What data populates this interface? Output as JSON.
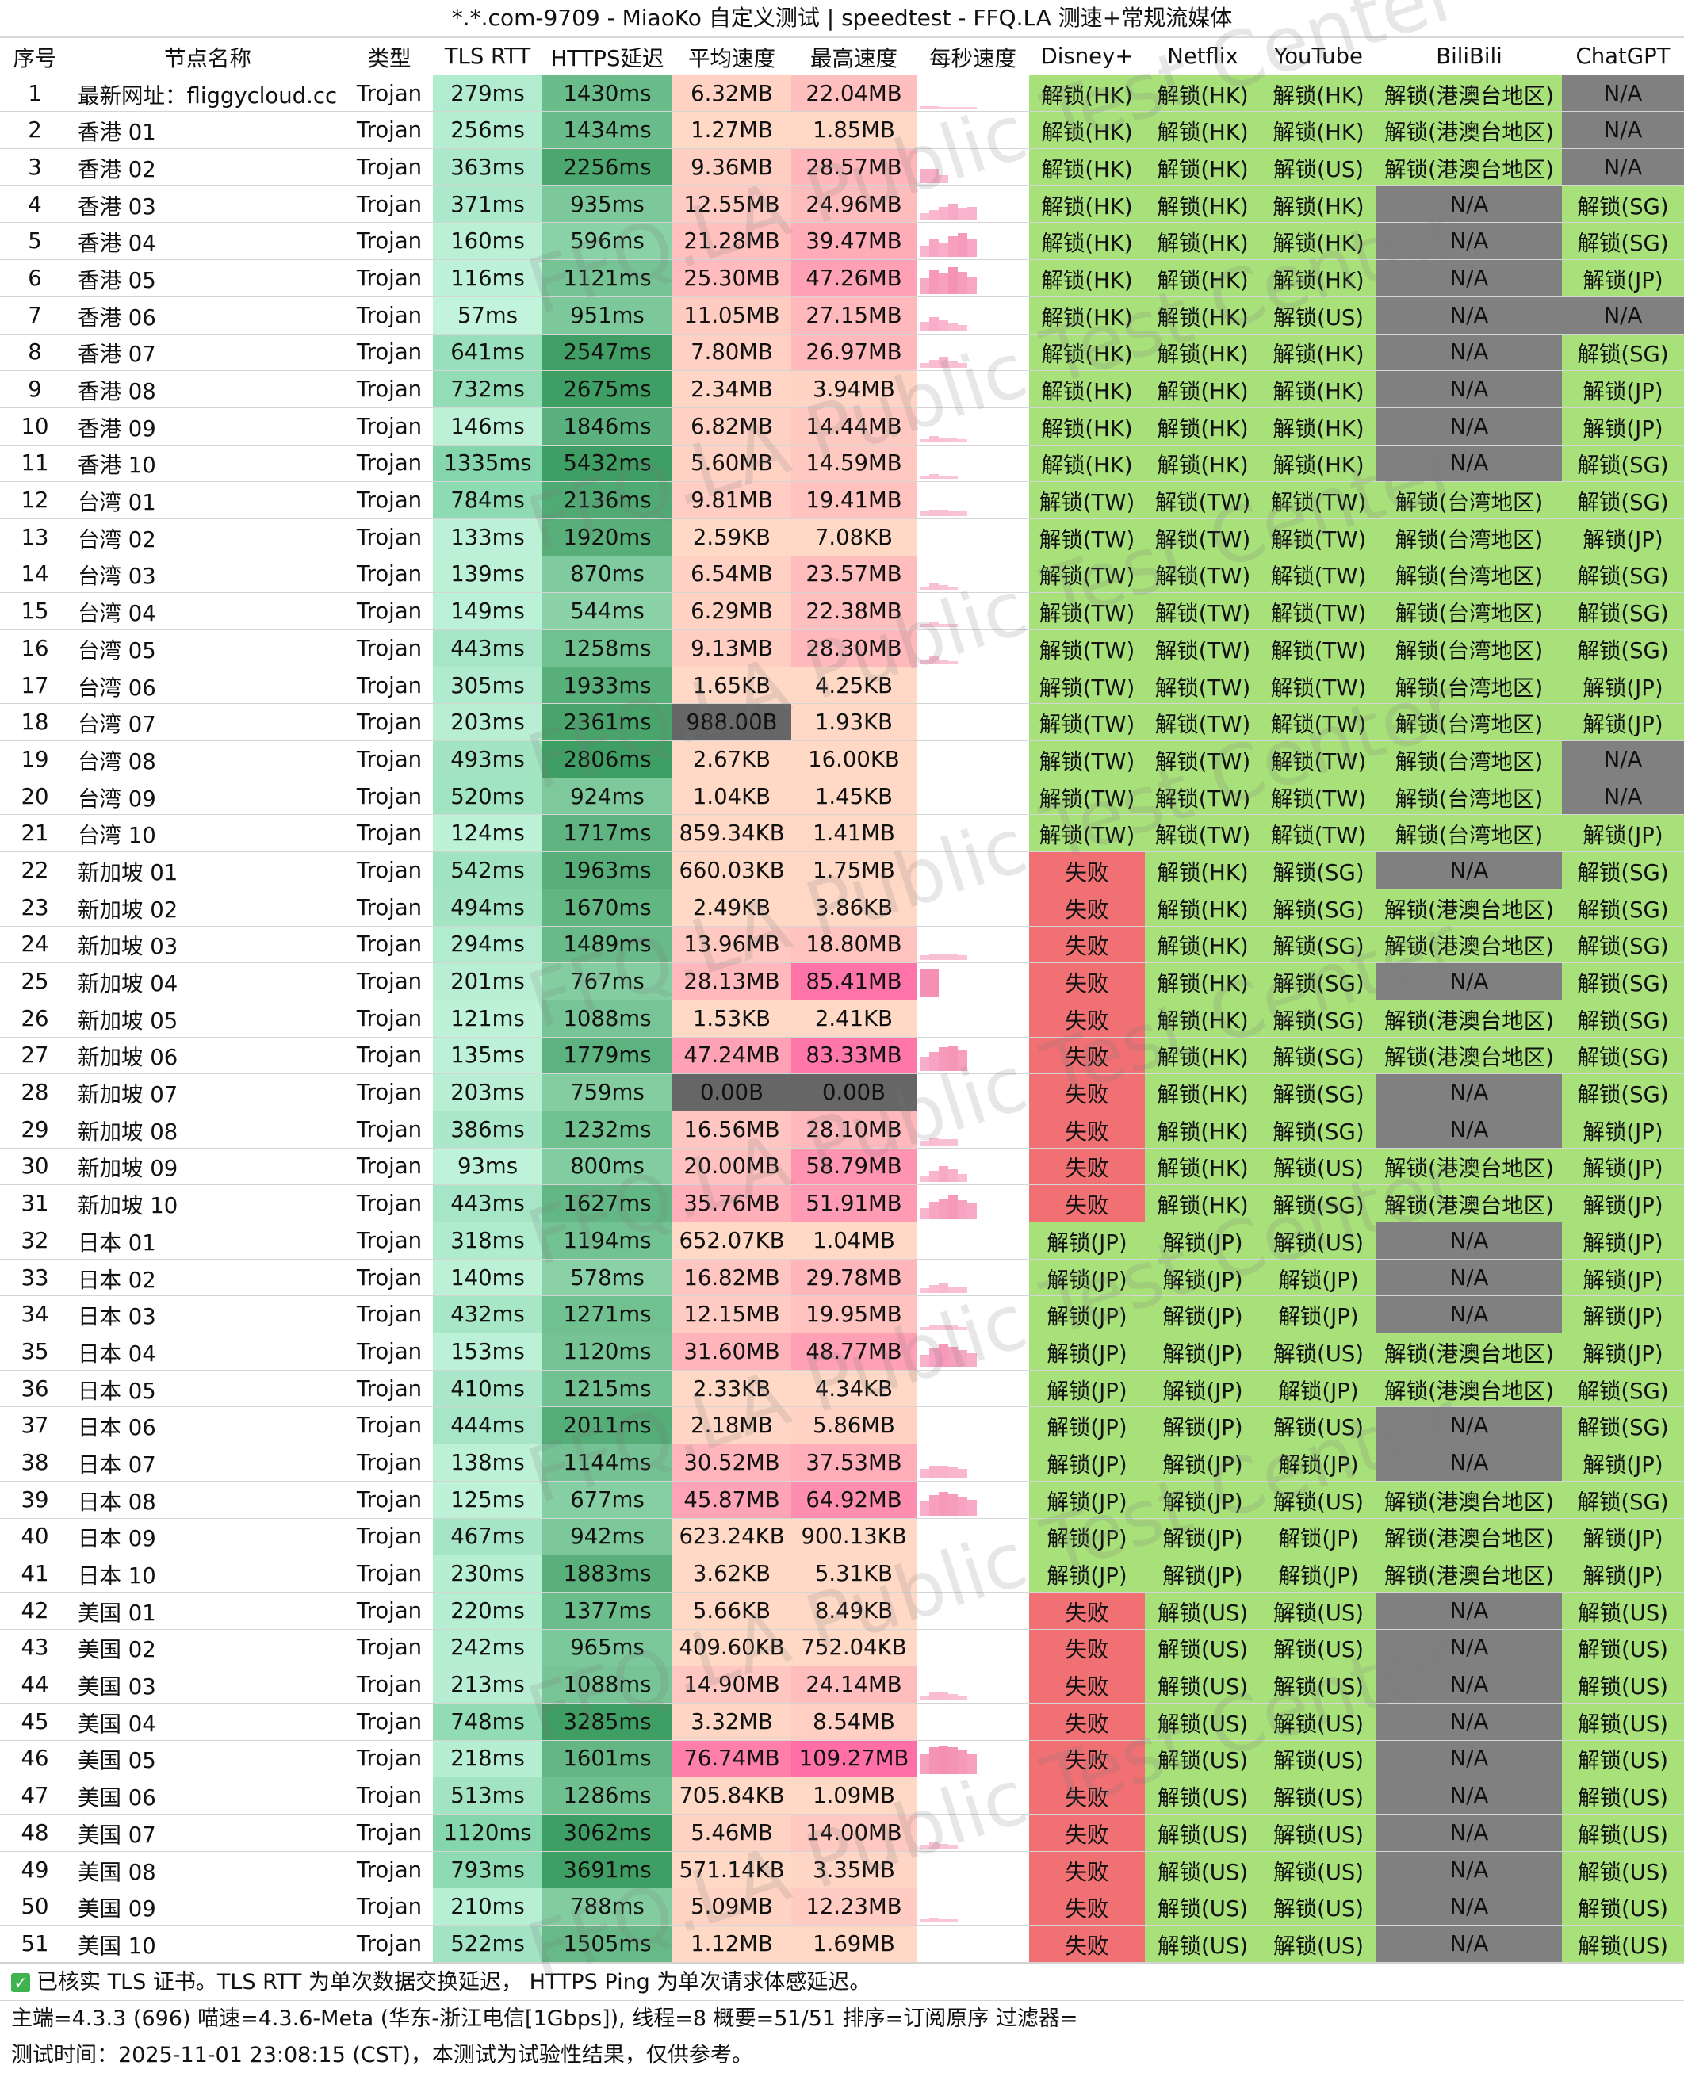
{
  "title": "*.*.com-9709 - MiaoKo 自定义测试 | speedtest - FFQ.LA 测速+常规流媒体",
  "watermark": "FFQ.LA Public Test Center",
  "headers": [
    "序号",
    "节点名称",
    "类型",
    "TLS RTT",
    "HTTPS延迟",
    "平均速度",
    "最高速度",
    "每秒速度",
    "Disney+",
    "Netflix",
    "YouTube",
    "BiliBili",
    "ChatGPT"
  ],
  "colors": {
    "tls_light": "#c6f6de",
    "tls_dark": "#86d6ad",
    "https_light": "#9fe0bb",
    "https_dark": "#3f9e63",
    "speed_light": "#ffd9c6",
    "speed_dark": "#ff6fa6",
    "zero_speed": "#666666",
    "unlock": "#a8e07a",
    "fail": "#f07074",
    "na": "#808080"
  },
  "rows": [
    {
      "id": "1",
      "name": "最新网址：fliggycloud.cc",
      "type": "Trojan",
      "tls": "279ms",
      "https": "1430ms",
      "avg": "6.32MB",
      "max": "22.04MB",
      "spark": [
        3,
        3,
        2,
        2,
        2,
        2
      ],
      "disney": "解锁(HK)",
      "netflix": "解锁(HK)",
      "youtube": "解锁(HK)",
      "bili": "解锁(港澳台地区)",
      "gpt": "N/A"
    },
    {
      "id": "2",
      "name": "香港 01",
      "type": "Trojan",
      "tls": "256ms",
      "https": "1434ms",
      "avg": "1.27MB",
      "max": "1.85MB",
      "spark": [],
      "disney": "解锁(HK)",
      "netflix": "解锁(HK)",
      "youtube": "解锁(HK)",
      "bili": "解锁(港澳台地区)",
      "gpt": "N/A"
    },
    {
      "id": "3",
      "name": "香港 02",
      "type": "Trojan",
      "tls": "363ms",
      "https": "2256ms",
      "avg": "9.36MB",
      "max": "28.57MB",
      "spark": [
        18,
        18,
        10
      ],
      "disney": "解锁(HK)",
      "netflix": "解锁(HK)",
      "youtube": "解锁(US)",
      "bili": "解锁(港澳台地区)",
      "gpt": "N/A"
    },
    {
      "id": "4",
      "name": "香港 03",
      "type": "Trojan",
      "tls": "371ms",
      "https": "935ms",
      "avg": "12.55MB",
      "max": "24.96MB",
      "spark": [
        8,
        12,
        16,
        20,
        14,
        16
      ],
      "disney": "解锁(HK)",
      "netflix": "解锁(HK)",
      "youtube": "解锁(HK)",
      "bili": "N/A",
      "gpt": "解锁(SG)"
    },
    {
      "id": "5",
      "name": "香港 04",
      "type": "Trojan",
      "tls": "160ms",
      "https": "596ms",
      "avg": "21.28MB",
      "max": "39.47MB",
      "spark": [
        14,
        22,
        18,
        26,
        30,
        22
      ],
      "disney": "解锁(HK)",
      "netflix": "解锁(HK)",
      "youtube": "解锁(HK)",
      "bili": "N/A",
      "gpt": "解锁(SG)"
    },
    {
      "id": "6",
      "name": "香港 05",
      "type": "Trojan",
      "tls": "116ms",
      "https": "1121ms",
      "avg": "25.30MB",
      "max": "47.26MB",
      "spark": [
        20,
        30,
        26,
        34,
        28,
        22
      ],
      "disney": "解锁(HK)",
      "netflix": "解锁(HK)",
      "youtube": "解锁(HK)",
      "bili": "N/A",
      "gpt": "解锁(JP)"
    },
    {
      "id": "7",
      "name": "香港 06",
      "type": "Trojan",
      "tls": "57ms",
      "https": "951ms",
      "avg": "11.05MB",
      "max": "27.15MB",
      "spark": [
        12,
        18,
        14,
        10,
        8
      ],
      "disney": "解锁(HK)",
      "netflix": "解锁(HK)",
      "youtube": "解锁(US)",
      "bili": "N/A",
      "gpt": "N/A"
    },
    {
      "id": "8",
      "name": "香港 07",
      "type": "Trojan",
      "tls": "641ms",
      "https": "2547ms",
      "avg": "7.80MB",
      "max": "26.97MB",
      "spark": [
        6,
        10,
        14,
        8,
        6
      ],
      "disney": "解锁(HK)",
      "netflix": "解锁(HK)",
      "youtube": "解锁(HK)",
      "bili": "N/A",
      "gpt": "解锁(SG)"
    },
    {
      "id": "9",
      "name": "香港 08",
      "type": "Trojan",
      "tls": "732ms",
      "https": "2675ms",
      "avg": "2.34MB",
      "max": "3.94MB",
      "spark": [],
      "disney": "解锁(HK)",
      "netflix": "解锁(HK)",
      "youtube": "解锁(HK)",
      "bili": "N/A",
      "gpt": "解锁(JP)"
    },
    {
      "id": "10",
      "name": "香港 09",
      "type": "Trojan",
      "tls": "146ms",
      "https": "1846ms",
      "avg": "6.82MB",
      "max": "14.44MB",
      "spark": [
        4,
        8,
        6,
        6,
        4
      ],
      "disney": "解锁(HK)",
      "netflix": "解锁(HK)",
      "youtube": "解锁(HK)",
      "bili": "N/A",
      "gpt": "解锁(JP)"
    },
    {
      "id": "11",
      "name": "香港 10",
      "type": "Trojan",
      "tls": "1335ms",
      "https": "5432ms",
      "avg": "5.60MB",
      "max": "14.59MB",
      "spark": [
        4,
        6,
        4,
        4
      ],
      "disney": "解锁(HK)",
      "netflix": "解锁(HK)",
      "youtube": "解锁(HK)",
      "bili": "N/A",
      "gpt": "解锁(SG)"
    },
    {
      "id": "12",
      "name": "台湾 01",
      "type": "Trojan",
      "tls": "784ms",
      "https": "2136ms",
      "avg": "9.81MB",
      "max": "19.41MB",
      "spark": [
        6,
        8,
        8,
        6,
        6
      ],
      "disney": "解锁(TW)",
      "netflix": "解锁(TW)",
      "youtube": "解锁(TW)",
      "bili": "解锁(台湾地区)",
      "gpt": "解锁(SG)"
    },
    {
      "id": "13",
      "name": "台湾 02",
      "type": "Trojan",
      "tls": "133ms",
      "https": "1920ms",
      "avg": "2.59KB",
      "max": "7.08KB",
      "spark": [],
      "disney": "解锁(TW)",
      "netflix": "解锁(TW)",
      "youtube": "解锁(TW)",
      "bili": "解锁(台湾地区)",
      "gpt": "解锁(JP)"
    },
    {
      "id": "14",
      "name": "台湾 03",
      "type": "Trojan",
      "tls": "139ms",
      "https": "870ms",
      "avg": "6.54MB",
      "max": "23.57MB",
      "spark": [
        4,
        8,
        6,
        4
      ],
      "disney": "解锁(TW)",
      "netflix": "解锁(TW)",
      "youtube": "解锁(TW)",
      "bili": "解锁(台湾地区)",
      "gpt": "解锁(SG)"
    },
    {
      "id": "15",
      "name": "台湾 04",
      "type": "Trojan",
      "tls": "149ms",
      "https": "544ms",
      "avg": "6.29MB",
      "max": "22.38MB",
      "spark": [
        4,
        6,
        4,
        4
      ],
      "disney": "解锁(TW)",
      "netflix": "解锁(TW)",
      "youtube": "解锁(TW)",
      "bili": "解锁(台湾地区)",
      "gpt": "解锁(SG)"
    },
    {
      "id": "16",
      "name": "台湾 05",
      "type": "Trojan",
      "tls": "443ms",
      "https": "1258ms",
      "avg": "9.13MB",
      "max": "28.30MB",
      "spark": [
        6,
        10,
        6,
        4
      ],
      "disney": "解锁(TW)",
      "netflix": "解锁(TW)",
      "youtube": "解锁(TW)",
      "bili": "解锁(台湾地区)",
      "gpt": "解锁(SG)"
    },
    {
      "id": "17",
      "name": "台湾 06",
      "type": "Trojan",
      "tls": "305ms",
      "https": "1933ms",
      "avg": "1.65KB",
      "max": "4.25KB",
      "spark": [],
      "disney": "解锁(TW)",
      "netflix": "解锁(TW)",
      "youtube": "解锁(TW)",
      "bili": "解锁(台湾地区)",
      "gpt": "解锁(JP)"
    },
    {
      "id": "18",
      "name": "台湾 07",
      "type": "Trojan",
      "tls": "203ms",
      "https": "2361ms",
      "avg": "988.00B",
      "max": "1.93KB",
      "spark": [],
      "disney": "解锁(TW)",
      "netflix": "解锁(TW)",
      "youtube": "解锁(TW)",
      "bili": "解锁(台湾地区)",
      "gpt": "解锁(JP)"
    },
    {
      "id": "19",
      "name": "台湾 08",
      "type": "Trojan",
      "tls": "493ms",
      "https": "2806ms",
      "avg": "2.67KB",
      "max": "16.00KB",
      "spark": [],
      "disney": "解锁(TW)",
      "netflix": "解锁(TW)",
      "youtube": "解锁(TW)",
      "bili": "解锁(台湾地区)",
      "gpt": "N/A"
    },
    {
      "id": "20",
      "name": "台湾 09",
      "type": "Trojan",
      "tls": "520ms",
      "https": "924ms",
      "avg": "1.04KB",
      "max": "1.45KB",
      "spark": [],
      "disney": "解锁(TW)",
      "netflix": "解锁(TW)",
      "youtube": "解锁(TW)",
      "bili": "解锁(台湾地区)",
      "gpt": "N/A"
    },
    {
      "id": "21",
      "name": "台湾 10",
      "type": "Trojan",
      "tls": "124ms",
      "https": "1717ms",
      "avg": "859.34KB",
      "max": "1.41MB",
      "spark": [],
      "disney": "解锁(TW)",
      "netflix": "解锁(TW)",
      "youtube": "解锁(TW)",
      "bili": "解锁(台湾地区)",
      "gpt": "解锁(JP)"
    },
    {
      "id": "22",
      "name": "新加坡 01",
      "type": "Trojan",
      "tls": "542ms",
      "https": "1963ms",
      "avg": "660.03KB",
      "max": "1.75MB",
      "spark": [],
      "disney": "失败",
      "netflix": "解锁(HK)",
      "youtube": "解锁(SG)",
      "bili": "N/A",
      "gpt": "解锁(SG)"
    },
    {
      "id": "23",
      "name": "新加坡 02",
      "type": "Trojan",
      "tls": "494ms",
      "https": "1670ms",
      "avg": "2.49KB",
      "max": "3.86KB",
      "spark": [],
      "disney": "失败",
      "netflix": "解锁(HK)",
      "youtube": "解锁(SG)",
      "bili": "解锁(港澳台地区)",
      "gpt": "解锁(SG)"
    },
    {
      "id": "24",
      "name": "新加坡 03",
      "type": "Trojan",
      "tls": "294ms",
      "https": "1489ms",
      "avg": "13.96MB",
      "max": "18.80MB",
      "spark": [
        6,
        8,
        8,
        8,
        6
      ],
      "disney": "失败",
      "netflix": "解锁(HK)",
      "youtube": "解锁(SG)",
      "bili": "解锁(港澳台地区)",
      "gpt": "解锁(SG)"
    },
    {
      "id": "25",
      "name": "新加坡 04",
      "type": "Trojan",
      "tls": "201ms",
      "https": "767ms",
      "avg": "28.13MB",
      "max": "85.41MB",
      "spark": [
        36,
        36
      ],
      "disney": "失败",
      "netflix": "解锁(HK)",
      "youtube": "解锁(SG)",
      "bili": "N/A",
      "gpt": "解锁(SG)"
    },
    {
      "id": "26",
      "name": "新加坡 05",
      "type": "Trojan",
      "tls": "121ms",
      "https": "1088ms",
      "avg": "1.53KB",
      "max": "2.41KB",
      "spark": [],
      "disney": "失败",
      "netflix": "解锁(HK)",
      "youtube": "解锁(SG)",
      "bili": "解锁(港澳台地区)",
      "gpt": "解锁(SG)"
    },
    {
      "id": "27",
      "name": "新加坡 06",
      "type": "Trojan",
      "tls": "135ms",
      "https": "1779ms",
      "avg": "47.24MB",
      "max": "83.33MB",
      "spark": [
        18,
        24,
        30,
        32,
        26
      ],
      "disney": "失败",
      "netflix": "解锁(HK)",
      "youtube": "解锁(SG)",
      "bili": "解锁(港澳台地区)",
      "gpt": "解锁(SG)"
    },
    {
      "id": "28",
      "name": "新加坡 07",
      "type": "Trojan",
      "tls": "203ms",
      "https": "759ms",
      "avg": "0.00B",
      "max": "0.00B",
      "spark": [],
      "disney": "失败",
      "netflix": "解锁(HK)",
      "youtube": "解锁(SG)",
      "bili": "N/A",
      "gpt": "解锁(SG)"
    },
    {
      "id": "29",
      "name": "新加坡 08",
      "type": "Trojan",
      "tls": "386ms",
      "https": "1232ms",
      "avg": "16.56MB",
      "max": "28.10MB",
      "spark": [
        6,
        10,
        8,
        8
      ],
      "disney": "失败",
      "netflix": "解锁(HK)",
      "youtube": "解锁(SG)",
      "bili": "N/A",
      "gpt": "解锁(JP)"
    },
    {
      "id": "30",
      "name": "新加坡 09",
      "type": "Trojan",
      "tls": "93ms",
      "https": "800ms",
      "avg": "20.00MB",
      "max": "58.79MB",
      "spark": [
        8,
        14,
        20,
        16,
        10
      ],
      "disney": "失败",
      "netflix": "解锁(HK)",
      "youtube": "解锁(US)",
      "bili": "解锁(港澳台地区)",
      "gpt": "解锁(JP)"
    },
    {
      "id": "31",
      "name": "新加坡 10",
      "type": "Trojan",
      "tls": "443ms",
      "https": "1627ms",
      "avg": "35.76MB",
      "max": "51.91MB",
      "spark": [
        14,
        22,
        26,
        30,
        24,
        20
      ],
      "disney": "失败",
      "netflix": "解锁(HK)",
      "youtube": "解锁(SG)",
      "bili": "解锁(港澳台地区)",
      "gpt": "解锁(JP)"
    },
    {
      "id": "32",
      "name": "日本 01",
      "type": "Trojan",
      "tls": "318ms",
      "https": "1194ms",
      "avg": "652.07KB",
      "max": "1.04MB",
      "spark": [],
      "disney": "解锁(JP)",
      "netflix": "解锁(JP)",
      "youtube": "解锁(US)",
      "bili": "N/A",
      "gpt": "解锁(JP)"
    },
    {
      "id": "33",
      "name": "日本 02",
      "type": "Trojan",
      "tls": "140ms",
      "https": "578ms",
      "avg": "16.82MB",
      "max": "29.78MB",
      "spark": [
        6,
        10,
        12,
        8,
        8
      ],
      "disney": "解锁(JP)",
      "netflix": "解锁(JP)",
      "youtube": "解锁(JP)",
      "bili": "N/A",
      "gpt": "解锁(JP)"
    },
    {
      "id": "34",
      "name": "日本 03",
      "type": "Trojan",
      "tls": "432ms",
      "https": "1271ms",
      "avg": "12.15MB",
      "max": "19.95MB",
      "spark": [
        4,
        6,
        6,
        6,
        4
      ],
      "disney": "解锁(JP)",
      "netflix": "解锁(JP)",
      "youtube": "解锁(JP)",
      "bili": "N/A",
      "gpt": "解锁(JP)"
    },
    {
      "id": "35",
      "name": "日本 04",
      "type": "Trojan",
      "tls": "153ms",
      "https": "1120ms",
      "avg": "31.60MB",
      "max": "48.77MB",
      "spark": [
        16,
        24,
        30,
        26,
        22,
        18
      ],
      "disney": "解锁(JP)",
      "netflix": "解锁(JP)",
      "youtube": "解锁(US)",
      "bili": "解锁(港澳台地区)",
      "gpt": "解锁(JP)"
    },
    {
      "id": "36",
      "name": "日本 05",
      "type": "Trojan",
      "tls": "410ms",
      "https": "1215ms",
      "avg": "2.33KB",
      "max": "4.34KB",
      "spark": [],
      "disney": "解锁(JP)",
      "netflix": "解锁(JP)",
      "youtube": "解锁(JP)",
      "bili": "解锁(港澳台地区)",
      "gpt": "解锁(SG)"
    },
    {
      "id": "37",
      "name": "日本 06",
      "type": "Trojan",
      "tls": "444ms",
      "https": "2011ms",
      "avg": "2.18MB",
      "max": "5.86MB",
      "spark": [],
      "disney": "解锁(JP)",
      "netflix": "解锁(JP)",
      "youtube": "解锁(US)",
      "bili": "N/A",
      "gpt": "解锁(SG)"
    },
    {
      "id": "38",
      "name": "日本 07",
      "type": "Trojan",
      "tls": "138ms",
      "https": "1144ms",
      "avg": "30.52MB",
      "max": "37.53MB",
      "spark": [
        12,
        16,
        16,
        14,
        12
      ],
      "disney": "解锁(JP)",
      "netflix": "解锁(JP)",
      "youtube": "解锁(JP)",
      "bili": "N/A",
      "gpt": "解锁(JP)"
    },
    {
      "id": "39",
      "name": "日本 08",
      "type": "Trojan",
      "tls": "125ms",
      "https": "677ms",
      "avg": "45.87MB",
      "max": "64.92MB",
      "spark": [
        18,
        26,
        30,
        28,
        24,
        20
      ],
      "disney": "解锁(JP)",
      "netflix": "解锁(JP)",
      "youtube": "解锁(US)",
      "bili": "解锁(港澳台地区)",
      "gpt": "解锁(SG)"
    },
    {
      "id": "40",
      "name": "日本 09",
      "type": "Trojan",
      "tls": "467ms",
      "https": "942ms",
      "avg": "623.24KB",
      "max": "900.13KB",
      "spark": [],
      "disney": "解锁(JP)",
      "netflix": "解锁(JP)",
      "youtube": "解锁(JP)",
      "bili": "解锁(港澳台地区)",
      "gpt": "解锁(JP)"
    },
    {
      "id": "41",
      "name": "日本 10",
      "type": "Trojan",
      "tls": "230ms",
      "https": "1883ms",
      "avg": "3.62KB",
      "max": "5.31KB",
      "spark": [],
      "disney": "解锁(JP)",
      "netflix": "解锁(JP)",
      "youtube": "解锁(JP)",
      "bili": "解锁(港澳台地区)",
      "gpt": "解锁(JP)"
    },
    {
      "id": "42",
      "name": "美国 01",
      "type": "Trojan",
      "tls": "220ms",
      "https": "1377ms",
      "avg": "5.66KB",
      "max": "8.49KB",
      "spark": [],
      "disney": "失败",
      "netflix": "解锁(US)",
      "youtube": "解锁(US)",
      "bili": "N/A",
      "gpt": "解锁(US)"
    },
    {
      "id": "43",
      "name": "美国 02",
      "type": "Trojan",
      "tls": "242ms",
      "https": "965ms",
      "avg": "409.60KB",
      "max": "752.04KB",
      "spark": [],
      "disney": "失败",
      "netflix": "解锁(US)",
      "youtube": "解锁(US)",
      "bili": "N/A",
      "gpt": "解锁(US)"
    },
    {
      "id": "44",
      "name": "美国 03",
      "type": "Trojan",
      "tls": "213ms",
      "https": "1088ms",
      "avg": "14.90MB",
      "max": "24.14MB",
      "spark": [
        6,
        10,
        10,
        8,
        6
      ],
      "disney": "失败",
      "netflix": "解锁(US)",
      "youtube": "解锁(US)",
      "bili": "N/A",
      "gpt": "解锁(US)"
    },
    {
      "id": "45",
      "name": "美国 04",
      "type": "Trojan",
      "tls": "748ms",
      "https": "3285ms",
      "avg": "3.32MB",
      "max": "8.54MB",
      "spark": [],
      "disney": "失败",
      "netflix": "解锁(US)",
      "youtube": "解锁(US)",
      "bili": "N/A",
      "gpt": "解锁(US)"
    },
    {
      "id": "46",
      "name": "美国 05",
      "type": "Trojan",
      "tls": "218ms",
      "https": "1601ms",
      "avg": "76.74MB",
      "max": "109.27MB",
      "spark": [
        26,
        34,
        36,
        34,
        30,
        26
      ],
      "disney": "失败",
      "netflix": "解锁(US)",
      "youtube": "解锁(US)",
      "bili": "N/A",
      "gpt": "解锁(US)"
    },
    {
      "id": "47",
      "name": "美国 06",
      "type": "Trojan",
      "tls": "513ms",
      "https": "1286ms",
      "avg": "705.84KB",
      "max": "1.09MB",
      "spark": [],
      "disney": "失败",
      "netflix": "解锁(US)",
      "youtube": "解锁(US)",
      "bili": "N/A",
      "gpt": "解锁(US)"
    },
    {
      "id": "48",
      "name": "美国 07",
      "type": "Trojan",
      "tls": "1120ms",
      "https": "3062ms",
      "avg": "5.46MB",
      "max": "14.00MB",
      "spark": [
        4,
        8,
        6,
        4
      ],
      "disney": "失败",
      "netflix": "解锁(US)",
      "youtube": "解锁(US)",
      "bili": "N/A",
      "gpt": "解锁(US)"
    },
    {
      "id": "49",
      "name": "美国 08",
      "type": "Trojan",
      "tls": "793ms",
      "https": "3691ms",
      "avg": "571.14KB",
      "max": "3.35MB",
      "spark": [],
      "disney": "失败",
      "netflix": "解锁(US)",
      "youtube": "解锁(US)",
      "bili": "N/A",
      "gpt": "解锁(US)"
    },
    {
      "id": "50",
      "name": "美国 09",
      "type": "Trojan",
      "tls": "210ms",
      "https": "788ms",
      "avg": "5.09MB",
      "max": "12.23MB",
      "spark": [
        4,
        6,
        4,
        4
      ],
      "disney": "失败",
      "netflix": "解锁(US)",
      "youtube": "解锁(US)",
      "bili": "N/A",
      "gpt": "解锁(US)"
    },
    {
      "id": "51",
      "name": "美国 10",
      "type": "Trojan",
      "tls": "522ms",
      "https": "1505ms",
      "avg": "1.12MB",
      "max": "1.69MB",
      "spark": [],
      "disney": "失败",
      "netflix": "解锁(US)",
      "youtube": "解锁(US)",
      "bili": "N/A",
      "gpt": "解锁(US)"
    }
  ],
  "footer": {
    "tls_note": "已核实 TLS 证书。TLS RTT 为单次数据交换延迟， HTTPS Ping 为单次请求体感延迟。",
    "info": "主端=4.3.3 (696) 喵速=4.3.6-Meta (华东-浙江电信[1Gbps]), 线程=8 概要=51/51 排序=订阅原序 过滤器=",
    "time": "测试时间：2025-11-01 23:08:15 (CST)，本测试为试验性结果，仅供参考。"
  }
}
